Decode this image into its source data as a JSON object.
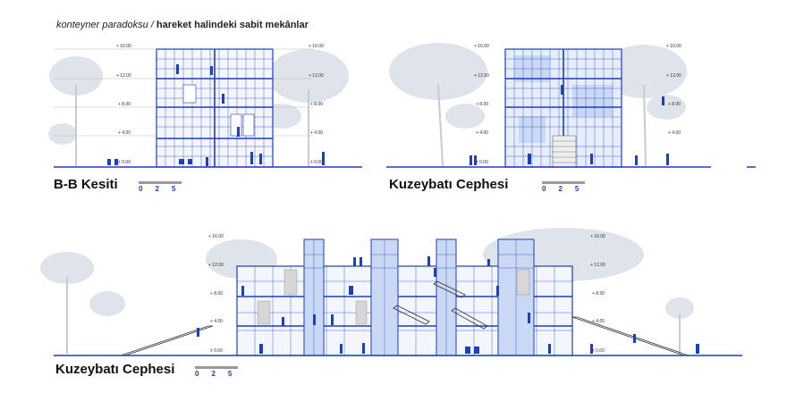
{
  "header": {
    "italic_text": "konteyner paradoksu / ",
    "bold_text": "hareket halindeki sabit mekânlar"
  },
  "levels": [
    "+ 16.00",
    "+ 12.00",
    "+ 8.00",
    "+ 4.00",
    "± 0.00"
  ],
  "drawings": [
    {
      "title": "B-B Kesiti",
      "scale": [
        "0",
        "2",
        "5"
      ]
    },
    {
      "title": "Kuzeybatı Cephesi",
      "scale": [
        "0",
        "2",
        "5"
      ]
    },
    {
      "title": "Kuzeybatı Cephesi",
      "scale": [
        "0",
        "2",
        "5"
      ]
    }
  ],
  "colors": {
    "line_blue": "#1f3fb8",
    "glass_blue": "#c9d8f5",
    "tree_grey": "#dfe3ea",
    "figure_blue": "#1f3fb8"
  }
}
